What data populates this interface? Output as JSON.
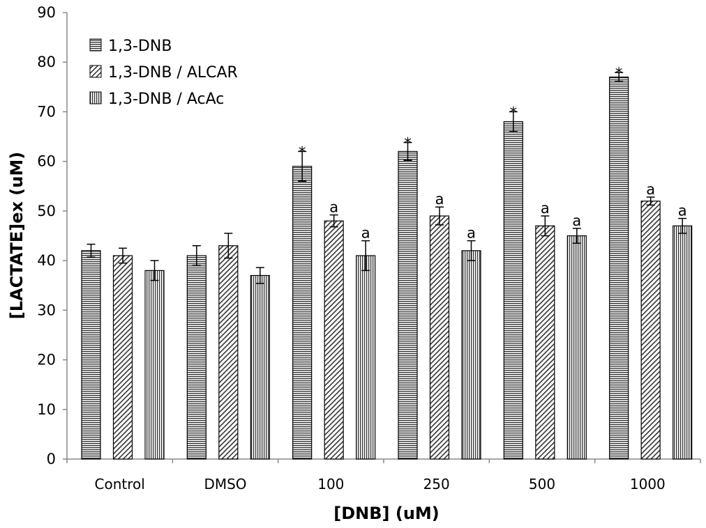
{
  "chart_data": {
    "type": "bar",
    "title": "",
    "xlabel": "[DNB] (uM)",
    "ylabel": "[LACTATE]ex (uM)",
    "ylim": [
      0,
      90
    ],
    "yticks": [
      0,
      10,
      20,
      30,
      40,
      50,
      60,
      70,
      80,
      90
    ],
    "grid": false,
    "legend_position": "top-left",
    "categories": [
      "Control",
      "DMSO",
      "100",
      "250",
      "500",
      "1000"
    ],
    "series": [
      {
        "name": "1,3-DNB",
        "pattern": "horizontal-lines",
        "values": [
          42,
          41,
          59,
          62,
          68,
          77
        ],
        "errors": [
          1.3,
          2.0,
          3.0,
          1.8,
          2.0,
          0.9
        ],
        "annotations": [
          "",
          "",
          "*",
          "*",
          "*",
          "*"
        ]
      },
      {
        "name": "1,3-DNB / ALCAR",
        "pattern": "diagonal-lines",
        "values": [
          41,
          43,
          48,
          49,
          47,
          52
        ],
        "errors": [
          1.5,
          2.5,
          1.2,
          1.8,
          2.0,
          0.8
        ],
        "annotations": [
          "",
          "",
          "a",
          "a",
          "a",
          "a"
        ]
      },
      {
        "name": "1,3-DNB / AcAc",
        "pattern": "vertical-lines",
        "values": [
          38,
          37,
          41,
          42,
          45,
          47
        ],
        "errors": [
          2.0,
          1.6,
          3.0,
          2.0,
          1.5,
          1.5
        ],
        "annotations": [
          "",
          "",
          "a",
          "a",
          "a",
          "a"
        ]
      }
    ],
    "colors": {
      "bar_fill": "#ffffff",
      "bar_stroke": "#000000",
      "pattern_line": "#333333",
      "axis": "#888888"
    }
  }
}
